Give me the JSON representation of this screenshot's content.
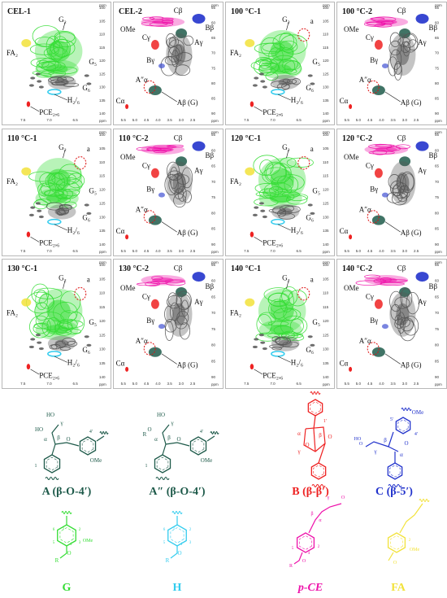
{
  "colors": {
    "G": "#33dd33",
    "H": "#33ccee",
    "pCE": "#ee11aa",
    "FA": "#f2e23a",
    "A": "#1e5a4a",
    "B": "#ee2222",
    "C": "#2233cc",
    "gray": "#555555",
    "red_marker": "#dd1111"
  },
  "axis": {
    "ppm": "ppm",
    "aromatic_x_ticks": [
      "7.5",
      "7.0",
      "6.5"
    ],
    "aromatic_y_ticks": [
      "100",
      "105",
      "110",
      "115",
      "120",
      "125",
      "130",
      "135",
      "140"
    ],
    "side_x_ticks": [
      "5.5",
      "5.0",
      "4.5",
      "4.0",
      "3.5",
      "3.0",
      "2.5"
    ],
    "side_y_ticks": [
      "55",
      "60",
      "65",
      "70",
      "75",
      "80",
      "85",
      "90"
    ]
  },
  "panels": [
    {
      "id": "cel1",
      "title": "CEL-1",
      "kind": "aromatic"
    },
    {
      "id": "cel2",
      "title": "CEL-2",
      "kind": "side"
    },
    {
      "id": "t100a",
      "title": "100 °C-1",
      "kind": "aromatic"
    },
    {
      "id": "t100b",
      "title": "100 °C-2",
      "kind": "side"
    },
    {
      "id": "t110a",
      "title": "110 °C-1",
      "kind": "aromatic"
    },
    {
      "id": "t110b",
      "title": "110 °C-2",
      "kind": "side"
    },
    {
      "id": "t120a",
      "title": "120 °C-1",
      "kind": "aromatic"
    },
    {
      "id": "t120b",
      "title": "120 °C-2",
      "kind": "side"
    },
    {
      "id": "t130a",
      "title": "130 °C-1",
      "kind": "aromatic"
    },
    {
      "id": "t130b",
      "title": "130 °C-2",
      "kind": "side"
    },
    {
      "id": "t140a",
      "title": "140 °C-1",
      "kind": "aromatic"
    },
    {
      "id": "t140b",
      "title": "140 °C-2",
      "kind": "side"
    }
  ],
  "peak_labels": {
    "G2": "G₂",
    "FA2": "FA₂",
    "G5": "G₅",
    "G6": "G₆",
    "H26": "H₂/₆",
    "PCE26": "PCE₂,₆",
    "a": "a",
    "Cb": "Cβ",
    "Bb": "Bβ",
    "OMe": "OMe",
    "Ag": "Aγ",
    "Cg": "Cγ",
    "Bg": "Bγ",
    "Aa": "Aα",
    "Ba": "Bα",
    "Ca": "Cα",
    "Ab": "Aβ (G)",
    "Ab1": "Aβ",
    "Ab2": "(G)",
    "App": "A″α",
    "C": "C",
    "g": "γ"
  },
  "structures": [
    {
      "id": "A",
      "label": "A (β-O-4′)"
    },
    {
      "id": "App",
      "label": "A″ (β-O-4′)"
    },
    {
      "id": "B",
      "label": "B (β-β′)"
    },
    {
      "id": "C",
      "label": "C (β-5′)"
    },
    {
      "id": "G",
      "label": "G"
    },
    {
      "id": "H",
      "label": "H"
    },
    {
      "id": "pCE",
      "label": "p-CE"
    },
    {
      "id": "FA",
      "label": "FA"
    }
  ],
  "atom_labels": {
    "HO": "HO",
    "OMe": "OMe",
    "O": "O",
    "R": "R",
    "alpha": "α",
    "beta": "β",
    "gamma": "γ",
    "n1": "1",
    "n2": "2",
    "n3": "3",
    "n4": "4",
    "n5": "5",
    "n6": "6",
    "n4p": "4′",
    "n1p": "1′",
    "n5p": "5′"
  }
}
